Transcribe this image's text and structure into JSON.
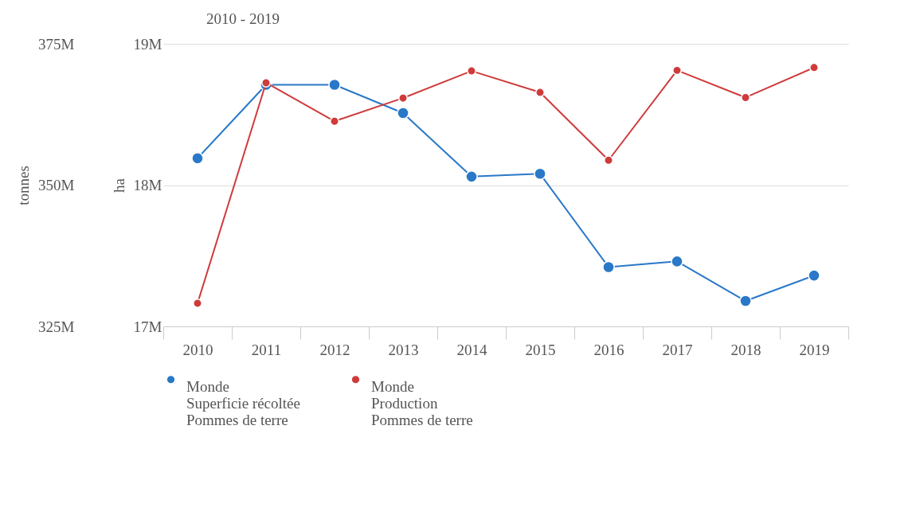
{
  "chart_data": {
    "type": "line",
    "title": "2010 - 2019",
    "categories": [
      "2010",
      "2011",
      "2012",
      "2013",
      "2014",
      "2015",
      "2016",
      "2017",
      "2018",
      "2019"
    ],
    "series": [
      {
        "name": "Monde\nSuperficie récoltée\nPommes de terre",
        "color": "#2a78c8",
        "axis": "y",
        "values": [
          18190000.0,
          18710000.0,
          18710000.0,
          18510000.0,
          18060000.0,
          18080000.0,
          17420000.0,
          17460000.0,
          17180000.0,
          17360000.0
        ]
      },
      {
        "name": "Monde\nProduction\nPommes de terre",
        "color": "#cf3b3b",
        "axis": "y2",
        "values": [
          329100000.0,
          368100000.0,
          361300000.0,
          365400000.0,
          370200000.0,
          366400000.0,
          354400000.0,
          370300000.0,
          365500000.0,
          370800000.0
        ]
      }
    ],
    "ylabel": "ha",
    "y2label": "tonnes",
    "ylim": [
      17000000,
      19000000
    ],
    "yticks": [
      {
        "value": 17000000,
        "label": "17M"
      },
      {
        "value": 18000000,
        "label": "18M"
      },
      {
        "value": 19000000,
        "label": "19M"
      }
    ],
    "y2lim": [
      325000000,
      375000000
    ],
    "y2ticks": [
      {
        "value": 325000000,
        "label": "325M"
      },
      {
        "value": 350000000,
        "label": "350M"
      },
      {
        "value": 375000000,
        "label": "375M"
      }
    ],
    "grid": "y",
    "legend": "bottom",
    "marker": "circle",
    "line_style": "solid"
  }
}
